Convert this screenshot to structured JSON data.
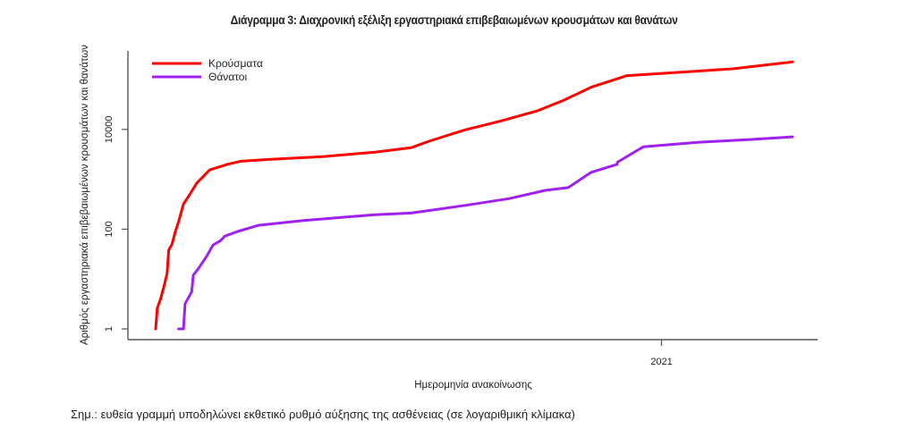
{
  "chart_data": {
    "type": "line",
    "title": "Διάγραμμα 3: Διαχρονική εξέλιξη εργαστηριακά επιβεβαιωμένων κρουσμάτων και θανάτων",
    "xlabel": "Ημερομηνία ανακοίνωσης",
    "ylabel": "Αριθμός εργαστηριακά επιβεβαιωμένων κρουσμάτων και θανάτων",
    "y_scale": "log",
    "ylim": [
      1,
      300000
    ],
    "y_ticks": [
      1,
      100,
      10000
    ],
    "y_tick_labels": [
      "1",
      "100",
      "10000"
    ],
    "x_unit": "days since first reported case",
    "xlim": [
      -15,
      405
    ],
    "x_ticks": [
      309
    ],
    "x_tick_labels": [
      "2021"
    ],
    "grid": false,
    "legend_position": "top-left",
    "note": "Σημ.: ευθεία γραμμή υποδηλώνει εκθετικό ρυθμό αύξησης της ασθένειας (σε λογαριθμική κλίμακα)",
    "series": [
      {
        "name": "Κρούσματα",
        "color": "#ff0000",
        "x": [
          0,
          1,
          3,
          5,
          7,
          8,
          10,
          12,
          14,
          17,
          20,
          25,
          33,
          44,
          52,
          69,
          102,
          134,
          156,
          167,
          189,
          211,
          233,
          249,
          266,
          288,
          321,
          353,
          389
        ],
        "y": [
          1,
          2.6,
          4,
          7,
          13,
          38,
          50,
          90,
          140,
          320,
          450,
          830,
          1540,
          2000,
          2300,
          2500,
          2850,
          3500,
          4300,
          5800,
          9800,
          14800,
          23500,
          38000,
          70000,
          120000,
          140000,
          165000,
          225000
        ]
      },
      {
        "name": "Θάνατοι",
        "color": "#a020f0",
        "x": [
          14,
          17,
          18,
          20,
          22,
          23,
          26,
          31,
          35,
          40,
          42,
          50,
          63,
          91,
          134,
          156,
          189,
          216,
          238,
          252,
          266,
          282,
          282,
          298,
          331,
          364,
          389
        ],
        "y": [
          1,
          1,
          3.2,
          4.2,
          5.6,
          12,
          16,
          28,
          48,
          60,
          72,
          90,
          120,
          150,
          195,
          210,
          300,
          410,
          600,
          680,
          1380,
          2000,
          2200,
          4500,
          5500,
          6300,
          7100
        ]
      }
    ]
  }
}
